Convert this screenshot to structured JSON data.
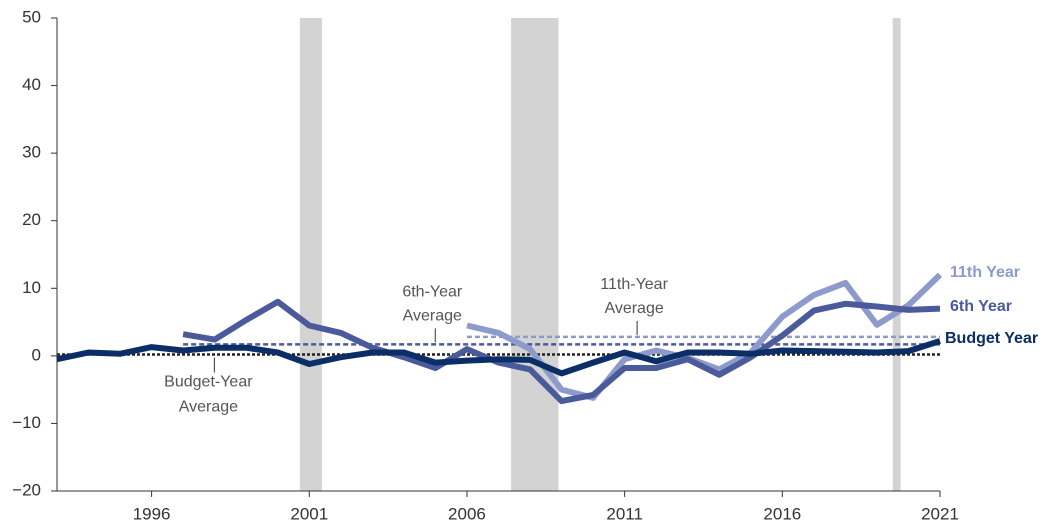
{
  "chart_data": {
    "type": "line",
    "x": [
      1993,
      1994,
      1995,
      1996,
      1997,
      1998,
      1999,
      2000,
      2001,
      2002,
      2003,
      2004,
      2005,
      2006,
      2007,
      2008,
      2009,
      2010,
      2011,
      2012,
      2013,
      2014,
      2015,
      2016,
      2017,
      2018,
      2019,
      2020,
      2021
    ],
    "series": [
      {
        "name": "11th Year",
        "color": "#8d9bcc",
        "values": [
          null,
          null,
          null,
          null,
          null,
          null,
          null,
          null,
          null,
          null,
          null,
          null,
          null,
          4.5,
          3.4,
          1.0,
          -5.0,
          -6.2,
          -0.5,
          0.8,
          -0.3,
          -2.0,
          0.5,
          5.8,
          9.0,
          10.8,
          4.6,
          7.5,
          12.0
        ]
      },
      {
        "name": "6th Year",
        "color": "#4a5a9a",
        "values": [
          null,
          null,
          null,
          null,
          3.2,
          2.4,
          5.3,
          8.0,
          4.5,
          3.4,
          1.2,
          -0.2,
          -1.8,
          1.0,
          -1.0,
          -2.0,
          -6.7,
          -5.8,
          -1.8,
          -1.8,
          -0.5,
          -2.8,
          -0.2,
          3.0,
          6.7,
          7.7,
          7.3,
          6.8,
          7.0
        ]
      },
      {
        "name": "Budget Year",
        "color": "#0b2e66",
        "values": [
          -0.5,
          0.5,
          0.3,
          1.3,
          0.8,
          1.2,
          1.2,
          0.5,
          -1.2,
          -0.2,
          0.5,
          0.5,
          -1.0,
          -0.7,
          -0.5,
          -0.6,
          -2.6,
          -1.0,
          0.5,
          -0.8,
          0.5,
          0.5,
          0.3,
          0.8,
          0.7,
          0.6,
          0.5,
          0.7,
          2.2
        ]
      }
    ],
    "averages": [
      {
        "label_lines": [
          "Budget-Year",
          "Average"
        ],
        "value": 0.2,
        "x": [
          1993,
          2021
        ],
        "color": "#222"
      },
      {
        "label_lines": [
          "6th-Year",
          "Average"
        ],
        "value": 1.7,
        "x": [
          1997,
          2021
        ],
        "color": "#4a5a9a"
      },
      {
        "label_lines": [
          "11th-Year",
          "Average"
        ],
        "value": 2.8,
        "x": [
          2006,
          2021
        ],
        "color": "#8d9bcc"
      }
    ],
    "shaded_periods": [
      [
        2000.7,
        2001.4
      ],
      [
        2007.4,
        2008.9
      ],
      [
        2019.5,
        2019.75
      ]
    ],
    "xlim": [
      1993,
      2021
    ],
    "xticks": [
      1996,
      2001,
      2006,
      2011,
      2016,
      2021
    ],
    "ylim": [
      -20,
      50
    ],
    "yticks": [
      {
        "value": -20,
        "label": "−20"
      },
      {
        "value": -10,
        "label": "−10"
      },
      0,
      10,
      20,
      30,
      40,
      50
    ]
  }
}
